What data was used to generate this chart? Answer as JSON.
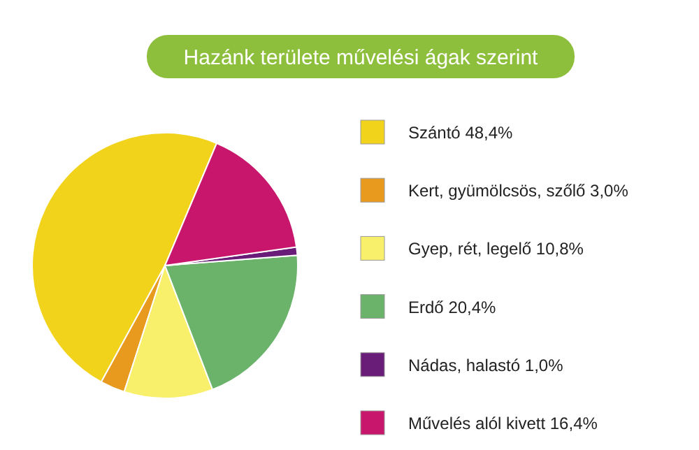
{
  "chart_data": {
    "type": "pie",
    "title": "Hazánk területe művelési ágak szerint",
    "categories": [
      "Szántó",
      "Kert, gyümölcsös, szőlő",
      "Gyep, rét, legelő",
      "Erdő",
      "Nádas, halastó",
      "Művelés alól kivett"
    ],
    "values": [
      48.4,
      3.0,
      10.8,
      20.4,
      1.0,
      16.4
    ],
    "value_labels": [
      "48,4%",
      "3,0%",
      "10,8%",
      "20,4%",
      "1,0%",
      "16,4%"
    ],
    "colors": [
      "#f2d31b",
      "#e89a1e",
      "#f8ef6b",
      "#6bb26b",
      "#6a1d78",
      "#c8166c"
    ],
    "legend": "right"
  }
}
